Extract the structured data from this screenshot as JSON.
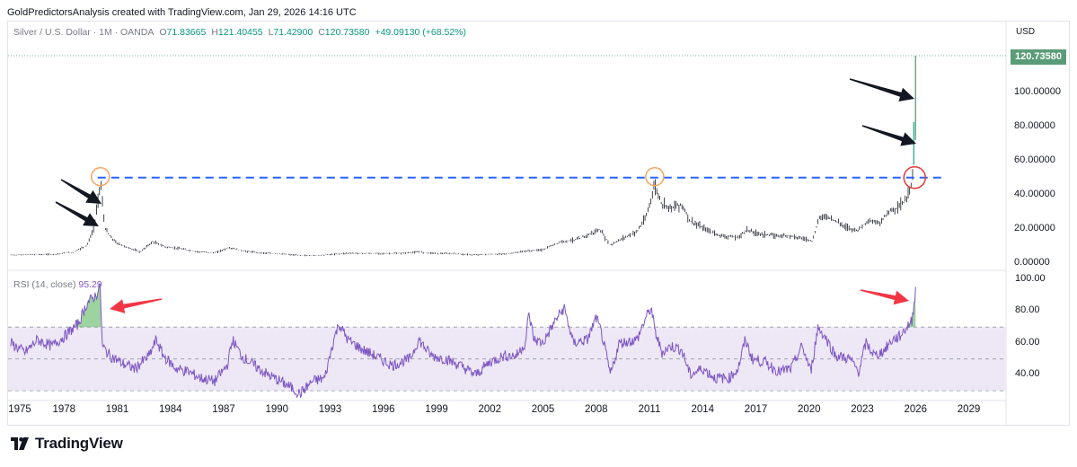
{
  "header": {
    "credit": "GoldPredictorsAnalysis created with TradingView.com, Jan 29, 2026 14:16 UTC"
  },
  "legend": {
    "symbol": "Silver / U.S. Dollar · 1M · OANDA",
    "open_label": "O",
    "open": "71.83665",
    "high_label": "H",
    "high": "121.40455",
    "low_label": "L",
    "low": "71.42900",
    "close_label": "C",
    "close": "120.73580",
    "change": "+49.09130 (+68.52%)"
  },
  "rsi_legend": {
    "label": "RSI (14, close)",
    "value": "95.29"
  },
  "axis": {
    "currency": "USD",
    "last_price": "120.73580",
    "price_ticks": [
      "100.00000",
      "80.00000",
      "60.00000",
      "40.00000",
      "20.00000",
      "0.00000"
    ],
    "rsi_ticks": [
      "100.00",
      "80.00",
      "60.00",
      "40.00"
    ],
    "years": [
      "1975",
      "1978",
      "1981",
      "1984",
      "1987",
      "1990",
      "1993",
      "1996",
      "1999",
      "2002",
      "2005",
      "2008",
      "2011",
      "2014",
      "2017",
      "2020",
      "2023",
      "2026",
      "2029"
    ]
  },
  "brand": {
    "name": "TradingView"
  },
  "colors": {
    "candle": "#131722",
    "support_line": "#2962ff",
    "rsi_line": "#7e57c2",
    "rsi_band": "#ede7f6",
    "overbought_fill": "#4caf50",
    "circle_orange": "#f7a35c",
    "circle_red": "#e53935",
    "arrow_black": "#131722",
    "arrow_red": "#f23645",
    "price_tag": "#5b9c78"
  },
  "chart_data": {
    "type": "candlestick",
    "title": "Silver / U.S. Dollar · 1M · OANDA",
    "x_unit": "year",
    "y_unit": "USD",
    "price_ylim": [
      0,
      120.7358
    ],
    "price_points": [
      [
        1975.0,
        4.2
      ],
      [
        1976.5,
        4.5
      ],
      [
        1977.5,
        4.7
      ],
      [
        1978.5,
        5.8
      ],
      [
        1979.3,
        10
      ],
      [
        1979.7,
        20
      ],
      [
        1979.9,
        35
      ],
      [
        1980.05,
        48
      ],
      [
        1980.3,
        20
      ],
      [
        1980.6,
        15
      ],
      [
        1981,
        11
      ],
      [
        1981.5,
        9
      ],
      [
        1982.3,
        6
      ],
      [
        1983,
        12
      ],
      [
        1983.7,
        9
      ],
      [
        1984.5,
        8
      ],
      [
        1985.5,
        6.2
      ],
      [
        1986.5,
        5.5
      ],
      [
        1987.3,
        8.5
      ],
      [
        1988,
        6.8
      ],
      [
        1989,
        5.5
      ],
      [
        1990,
        5
      ],
      [
        1991,
        4.2
      ],
      [
        1992,
        3.9
      ],
      [
        1993,
        4.5
      ],
      [
        1994,
        5.3
      ],
      [
        1995,
        5.2
      ],
      [
        1996,
        5.1
      ],
      [
        1997,
        5.2
      ],
      [
        1998,
        6
      ],
      [
        1999,
        5.2
      ],
      [
        2000,
        5
      ],
      [
        2001,
        4.3
      ],
      [
        2002,
        4.6
      ],
      [
        2003,
        4.9
      ],
      [
        2004,
        6.5
      ],
      [
        2005,
        7.3
      ],
      [
        2006,
        12
      ],
      [
        2007,
        13.5
      ],
      [
        2008.2,
        19
      ],
      [
        2008.8,
        10
      ],
      [
        2009.5,
        14
      ],
      [
        2010.3,
        18
      ],
      [
        2010.8,
        26
      ],
      [
        2011.3,
        45
      ],
      [
        2011.7,
        34
      ],
      [
        2012.3,
        32
      ],
      [
        2012.8,
        34
      ],
      [
        2013.3,
        24
      ],
      [
        2014,
        20
      ],
      [
        2015,
        15.5
      ],
      [
        2016,
        14.5
      ],
      [
        2016.5,
        19
      ],
      [
        2017,
        17
      ],
      [
        2018,
        15.5
      ],
      [
        2019,
        15.5
      ],
      [
        2020.2,
        12.5
      ],
      [
        2020.6,
        27
      ],
      [
        2021.2,
        26
      ],
      [
        2022,
        21
      ],
      [
        2022.7,
        18.5
      ],
      [
        2023.3,
        24
      ],
      [
        2024,
        23
      ],
      [
        2024.5,
        30
      ],
      [
        2025,
        32
      ],
      [
        2025.5,
        37
      ],
      [
        2025.8,
        48
      ],
      [
        2025.92,
        57
      ],
      [
        2026.0,
        120.7358
      ]
    ],
    "support_level": 49.5,
    "rsi_ylim": [
      25,
      100
    ],
    "rsi_levels": [
      70,
      50,
      30
    ],
    "rsi_points": [
      [
        1975,
        60
      ],
      [
        1975.8,
        54
      ],
      [
        1976.5,
        62
      ],
      [
        1977.3,
        58
      ],
      [
        1978,
        64
      ],
      [
        1978.8,
        72
      ],
      [
        1979.3,
        85
      ],
      [
        1979.8,
        90
      ],
      [
        1980.05,
        95.29
      ],
      [
        1980.15,
        58
      ],
      [
        1980.6,
        52
      ],
      [
        1981.3,
        47
      ],
      [
        1982,
        44
      ],
      [
        1982.8,
        52
      ],
      [
        1983.2,
        62
      ],
      [
        1983.6,
        52
      ],
      [
        1984.3,
        44
      ],
      [
        1985,
        42
      ],
      [
        1985.7,
        38
      ],
      [
        1986.5,
        36
      ],
      [
        1987.2,
        46
      ],
      [
        1987.5,
        62
      ],
      [
        1988,
        52
      ],
      [
        1988.7,
        46
      ],
      [
        1989.5,
        40
      ],
      [
        1990.2,
        36
      ],
      [
        1990.8,
        32
      ],
      [
        1991.3,
        28
      ],
      [
        1992,
        36
      ],
      [
        1992.7,
        38
      ],
      [
        1993.2,
        62
      ],
      [
        1993.5,
        72
      ],
      [
        1994,
        62
      ],
      [
        1994.8,
        56
      ],
      [
        1995.5,
        52
      ],
      [
        1996.5,
        46
      ],
      [
        1997.5,
        50
      ],
      [
        1998,
        62
      ],
      [
        1998.7,
        52
      ],
      [
        1999.5,
        50
      ],
      [
        2000.3,
        46
      ],
      [
        2001.2,
        40
      ],
      [
        2002,
        48
      ],
      [
        2002.8,
        52
      ],
      [
        2003.5,
        52
      ],
      [
        2004,
        60
      ],
      [
        2004.2,
        78
      ],
      [
        2004.5,
        62
      ],
      [
        2005,
        60
      ],
      [
        2005.8,
        76
      ],
      [
        2006.2,
        82
      ],
      [
        2006.7,
        60
      ],
      [
        2007.5,
        62
      ],
      [
        2008,
        76
      ],
      [
        2008.3,
        66
      ],
      [
        2008.8,
        40
      ],
      [
        2009.3,
        60
      ],
      [
        2010.3,
        62
      ],
      [
        2010.8,
        76
      ],
      [
        2011.1,
        82
      ],
      [
        2011.3,
        68
      ],
      [
        2011.7,
        54
      ],
      [
        2012.2,
        58
      ],
      [
        2012.8,
        56
      ],
      [
        2013.3,
        40
      ],
      [
        2014,
        44
      ],
      [
        2014.7,
        38
      ],
      [
        2015.5,
        38
      ],
      [
        2016,
        44
      ],
      [
        2016.4,
        62
      ],
      [
        2016.8,
        50
      ],
      [
        2017.5,
        48
      ],
      [
        2018.3,
        42
      ],
      [
        2019,
        44
      ],
      [
        2019.6,
        58
      ],
      [
        2020.1,
        42
      ],
      [
        2020.5,
        70
      ],
      [
        2021,
        62
      ],
      [
        2021.5,
        52
      ],
      [
        2022.3,
        50
      ],
      [
        2022.8,
        42
      ],
      [
        2023.2,
        60
      ],
      [
        2023.7,
        52
      ],
      [
        2024.2,
        55
      ],
      [
        2024.7,
        62
      ],
      [
        2025.1,
        64
      ],
      [
        2025.5,
        70
      ],
      [
        2025.8,
        74
      ],
      [
        2025.95,
        88
      ],
      [
        2026.0,
        95.29
      ]
    ]
  }
}
